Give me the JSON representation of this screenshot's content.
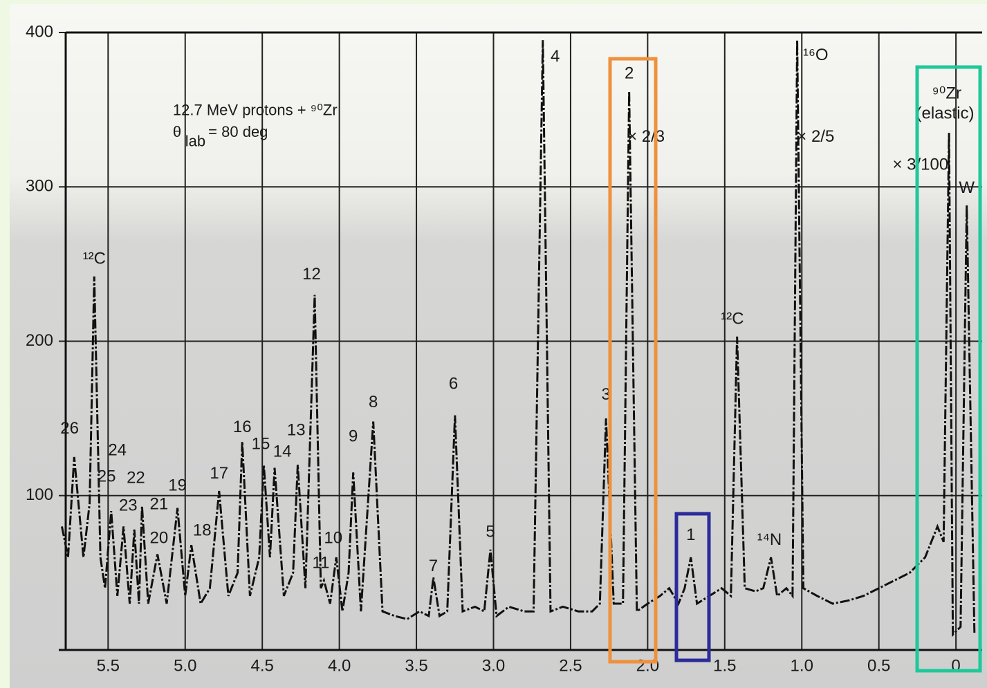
{
  "chart_data": {
    "type": "line",
    "xlim": [
      5.82,
      -0.17
    ],
    "ylim": [
      0,
      400
    ],
    "xticks": [
      5.5,
      {
        "value": 5,
        "label": "5.0"
      },
      4.5,
      {
        "value": 4,
        "label": "4.0"
      },
      3.5,
      {
        "value": 3,
        "label": "3.0"
      },
      2.5,
      {
        "value": 2,
        "label": "2.0"
      },
      1.5,
      {
        "value": 1,
        "label": "1.0"
      },
      0.5,
      0
    ],
    "yticks": [
      100,
      200,
      300,
      400
    ],
    "grid": true,
    "x": [
      5.8,
      5.76,
      5.72,
      5.66,
      5.62,
      5.59,
      5.55,
      5.52,
      5.48,
      5.44,
      5.4,
      5.36,
      5.33,
      5.3,
      5.28,
      5.24,
      5.18,
      5.12,
      5.05,
      5.0,
      4.96,
      4.9,
      4.84,
      4.78,
      4.72,
      4.66,
      4.63,
      4.58,
      4.52,
      4.49,
      4.45,
      4.42,
      4.36,
      4.3,
      4.27,
      4.22,
      4.16,
      4.12,
      4.1,
      4.06,
      4.02,
      3.98,
      3.94,
      3.91,
      3.86,
      3.78,
      3.72,
      3.64,
      3.56,
      3.48,
      3.42,
      3.39,
      3.35,
      3.3,
      3.25,
      3.2,
      3.12,
      3.06,
      3.02,
      2.98,
      2.9,
      2.8,
      2.74,
      2.68,
      2.63,
      2.55,
      2.45,
      2.36,
      2.31,
      2.27,
      2.22,
      2.16,
      2.12,
      2.07,
      2.0,
      1.92,
      1.86,
      1.8,
      1.76,
      1.72,
      1.68,
      1.6,
      1.52,
      1.46,
      1.42,
      1.37,
      1.3,
      1.25,
      1.2,
      1.16,
      1.1,
      1.06,
      1.03,
      0.99,
      0.9,
      0.8,
      0.7,
      0.6,
      0.5,
      0.4,
      0.3,
      0.2,
      0.12,
      0.08,
      0.045,
      0.02,
      -0.03,
      -0.07,
      -0.12
    ],
    "series": [
      {
        "color": "#111111",
        "values": [
          80,
          60,
          125,
          60,
          95,
          242,
          60,
          40,
          90,
          35,
          80,
          30,
          78,
          30,
          93,
          30,
          62,
          30,
          92,
          35,
          68,
          30,
          40,
          103,
          35,
          50,
          135,
          35,
          60,
          120,
          60,
          118,
          35,
          50,
          120,
          40,
          230,
          40,
          45,
          30,
          60,
          25,
          50,
          115,
          25,
          148,
          25,
          22,
          20,
          25,
          22,
          47,
          22,
          25,
          152,
          25,
          28,
          25,
          65,
          22,
          28,
          25,
          25,
          395,
          25,
          28,
          25,
          25,
          30,
          150,
          30,
          30,
          362,
          25,
          30,
          35,
          40,
          30,
          40,
          60,
          30,
          35,
          40,
          35,
          203,
          40,
          38,
          40,
          60,
          35,
          40,
          35,
          395,
          40,
          35,
          30,
          32,
          35,
          40,
          45,
          50,
          60,
          80,
          70,
          335,
          10,
          15,
          288,
          10
        ]
      }
    ],
    "peak_labels": [
      {
        "label": "26",
        "x": 5.75,
        "y": 143
      },
      {
        "label": "¹²C",
        "x": 5.59,
        "y": 253
      },
      {
        "label": "24",
        "x": 5.44,
        "y": 129
      },
      {
        "label": "25",
        "x": 5.51,
        "y": 112
      },
      {
        "label": "22",
        "x": 5.32,
        "y": 111
      },
      {
        "label": "23",
        "x": 5.37,
        "y": 93
      },
      {
        "label": "21",
        "x": 5.17,
        "y": 94
      },
      {
        "label": "20",
        "x": 5.17,
        "y": 72
      },
      {
        "label": "19",
        "x": 5.05,
        "y": 106
      },
      {
        "label": "18",
        "x": 4.89,
        "y": 77
      },
      {
        "label": "17",
        "x": 4.78,
        "y": 114
      },
      {
        "label": "16",
        "x": 4.63,
        "y": 144
      },
      {
        "label": "15",
        "x": 4.51,
        "y": 133
      },
      {
        "label": "14",
        "x": 4.37,
        "y": 128
      },
      {
        "label": "13",
        "x": 4.28,
        "y": 142
      },
      {
        "label": "12",
        "x": 4.18,
        "y": 243
      },
      {
        "label": "11",
        "x": 4.12,
        "y": 56
      },
      {
        "label": "10",
        "x": 4.04,
        "y": 72
      },
      {
        "label": "9",
        "x": 3.91,
        "y": 138
      },
      {
        "label": "8",
        "x": 3.78,
        "y": 160
      },
      {
        "label": "7",
        "x": 3.39,
        "y": 54
      },
      {
        "label": "6",
        "x": 3.26,
        "y": 172
      },
      {
        "label": "5",
        "x": 3.02,
        "y": 76
      },
      {
        "label": "4",
        "x": 2.6,
        "y": 384
      },
      {
        "label": "3",
        "x": 2.27,
        "y": 165
      },
      {
        "label": "2",
        "x": 2.12,
        "y": 373
      },
      {
        "label": "1",
        "x": 1.72,
        "y": 74
      },
      {
        "label": "¹²C",
        "x": 1.45,
        "y": 214
      },
      {
        "label": "¹⁴N",
        "x": 1.21,
        "y": 71
      },
      {
        "label": "¹⁶O",
        "x": 0.91,
        "y": 385
      },
      {
        "label": "⁹⁰Zr",
        "x": 0.06,
        "y": 360
      },
      {
        "label": "(elastic)",
        "x": 0.07,
        "y": 347
      },
      {
        "label": "W",
        "x": -0.07,
        "y": 299
      },
      {
        "label": "× 2/3",
        "x": 2.01,
        "y": 332
      },
      {
        "label": "× 2/5",
        "x": 0.91,
        "y": 332
      },
      {
        "label": "× 3/100",
        "x": 0.23,
        "y": 314
      }
    ],
    "annotations": [
      {
        "text": "12.7 MeV protons + ⁹⁰Zr",
        "x": 5.08,
        "y": 349
      },
      {
        "text": "θ",
        "x": 5.08,
        "y": 335
      },
      {
        "text": "lab",
        "x": 5.0,
        "y": 329
      },
      {
        "text": "= 80 deg",
        "x": 4.85,
        "y": 335
      }
    ]
  }
}
